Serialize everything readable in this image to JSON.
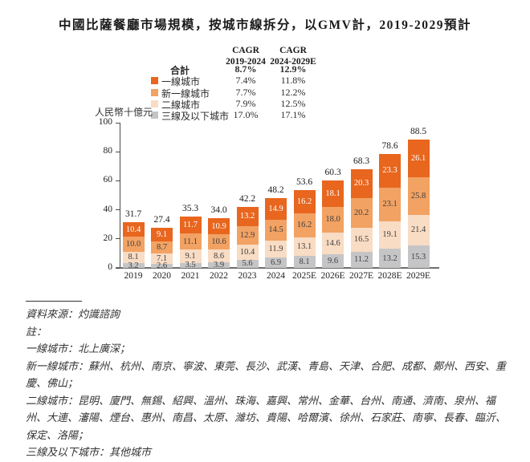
{
  "chart_data": {
    "type": "bar",
    "stacked": true,
    "title": "中國比薩餐廳市場規模，按城市線拆分，以GMV計，2019-2029預計",
    "ylabel": "人民幣十億元",
    "ylim": [
      0,
      100
    ],
    "yticks": [
      0,
      20,
      40,
      60,
      80,
      100
    ],
    "grid": false,
    "legend_position": "top",
    "categories": [
      "2019",
      "2020",
      "2021",
      "2022",
      "2023",
      "2024",
      "2025E",
      "2026E",
      "2027E",
      "2028E",
      "2029E"
    ],
    "series": [
      {
        "name": "一線城市",
        "color": "#E8661E",
        "label_color": "#FFFFFF",
        "values": [
          10.4,
          9.1,
          11.7,
          10.9,
          13.2,
          14.9,
          16.2,
          18.1,
          20.3,
          23.3,
          26.1
        ]
      },
      {
        "name": "新一線城市",
        "color": "#F2A263",
        "label_color": "#3F3F3F",
        "values": [
          10.0,
          8.7,
          11.1,
          10.6,
          12.9,
          14.5,
          16.2,
          18.0,
          20.2,
          23.1,
          25.8
        ]
      },
      {
        "name": "二線城市",
        "color": "#F9DCC4",
        "label_color": "#3F3F3F",
        "values": [
          8.1,
          7.1,
          9.1,
          8.6,
          10.4,
          11.9,
          13.1,
          14.6,
          16.5,
          19.1,
          21.4
        ]
      },
      {
        "name": "三線及以下城市",
        "color": "#C5C5C7",
        "label_color": "#3F3F3F",
        "values": [
          3.2,
          2.6,
          3.5,
          3.9,
          5.6,
          6.9,
          8.1,
          9.6,
          11.2,
          13.2,
          15.3
        ]
      }
    ],
    "totals": [
      31.7,
      27.4,
      35.3,
      34.0,
      42.2,
      48.2,
      53.6,
      60.3,
      68.3,
      78.6,
      88.5
    ]
  },
  "legend_table": {
    "col1_header": "CAGR\n2019-2024",
    "col2_header": "CAGR\n2024-2029E",
    "rows": [
      {
        "label": "合計",
        "cagr1": "8.7%",
        "cagr2": "12.9%",
        "bold": true,
        "color": null
      },
      {
        "label": "一線城市",
        "cagr1": "7.4%",
        "cagr2": "11.8%",
        "bold": false,
        "color": "#E8661E"
      },
      {
        "label": "新一線城市",
        "cagr1": "7.7%",
        "cagr2": "12.2%",
        "bold": false,
        "color": "#F2A263"
      },
      {
        "label": "二線城市",
        "cagr1": "7.9%",
        "cagr2": "12.5%",
        "bold": false,
        "color": "#F9DCC4"
      },
      {
        "label": "三線及以下城市",
        "cagr1": "17.0%",
        "cagr2": "17.1%",
        "bold": false,
        "color": "#C5C5C7"
      }
    ]
  },
  "footnotes": {
    "source": "資料來源：灼識諮詢",
    "note_label": "註：",
    "notes": [
      "一線城市：北上廣深；",
      "新一線城市：蘇州、杭州、南京、寧波、東莞、長沙、武漢、青島、天津、合肥、成都、鄭州、西安、重慶、佛山；",
      "二線城市：昆明、廈門、無錫、紹興、溫州、珠海、嘉興、常州、金華、台州、南通、濟南、泉州、福州、大連、瀋陽、煙台、惠州、南昌、太原、濰坊、貴陽、哈爾濱、徐州、石家莊、南寧、長春、臨沂、保定、洛陽；",
      "三線及以下城市：其他城市"
    ]
  }
}
